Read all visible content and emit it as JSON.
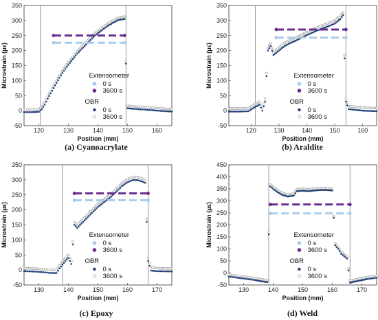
{
  "colors": {
    "extensometer_0s": "#a9cbea",
    "extensometer_3600s": "#6a2c91",
    "obr_0s": "#1f3f78",
    "obr_3600s_fill": "#ffffff",
    "obr_3600s_edge": "#999999",
    "divider": "#9a9a9a"
  },
  "legend": {
    "extensometer_title": "Extensometer",
    "obr_title": "OBR",
    "label_0s": "0 s",
    "label_3600s": "3600 s"
  },
  "chart_data": [
    {
      "type": "scatter",
      "caption": "(a) Cyanoacrylate",
      "xlabel": "Position (mm)",
      "ylabel": "Microstrain (με)",
      "xlim": [
        115,
        165
      ],
      "ylim": [
        -50,
        350
      ],
      "xticks": [
        120,
        130,
        140,
        150,
        160
      ],
      "yticks": [
        -50,
        0,
        50,
        100,
        150,
        200,
        250,
        300,
        350
      ],
      "dividers": [
        120.5,
        149.5
      ],
      "extensometer": [
        {
          "name": "0 s",
          "x_range": [
            125,
            149
          ],
          "value": 226
        },
        {
          "name": "3600 s",
          "x_range": [
            125,
            149
          ],
          "value": 250
        }
      ],
      "obr_profile": [
        [
          115,
          -5
        ],
        [
          118,
          -5
        ],
        [
          120,
          -4
        ],
        [
          121,
          5
        ],
        [
          122,
          20
        ],
        [
          123,
          40
        ],
        [
          125,
          75
        ],
        [
          127,
          110
        ],
        [
          129,
          140
        ],
        [
          131,
          165
        ],
        [
          133,
          190
        ],
        [
          135,
          210
        ],
        [
          137,
          230
        ],
        [
          139,
          250
        ],
        [
          141,
          265
        ],
        [
          143,
          280
        ],
        [
          145,
          292
        ],
        [
          147,
          302
        ],
        [
          149,
          305
        ],
        [
          150,
          8
        ],
        [
          152,
          6
        ],
        [
          155,
          4
        ],
        [
          158,
          2
        ],
        [
          160,
          0
        ],
        [
          163,
          -2
        ],
        [
          165,
          -3
        ]
      ],
      "obr_3600_offset": 8,
      "legend_position": "bottom-right"
    },
    {
      "type": "scatter",
      "caption": "(b) Araldite",
      "xlabel": "Position (mm)",
      "ylabel": "Microstrain (με)",
      "xlim": [
        112,
        165
      ],
      "ylim": [
        -50,
        350
      ],
      "xticks": [
        120,
        130,
        140,
        150,
        160
      ],
      "yticks": [
        -50,
        0,
        50,
        100,
        150,
        200,
        250,
        300,
        350
      ],
      "dividers": [
        121.5,
        154
      ],
      "extensometer": [
        {
          "name": "0 s",
          "x_range": [
            129,
            154
          ],
          "value": 243
        },
        {
          "name": "3600 s",
          "x_range": [
            129,
            154
          ],
          "value": 270
        }
      ],
      "obr_profile": [
        [
          112,
          -3
        ],
        [
          116,
          -3
        ],
        [
          119,
          -2
        ],
        [
          121,
          10
        ],
        [
          123,
          20
        ],
        [
          124,
          0
        ],
        [
          125,
          30
        ],
        [
          126,
          200
        ],
        [
          127,
          215
        ],
        [
          128,
          185
        ],
        [
          130,
          200
        ],
        [
          132,
          215
        ],
        [
          134,
          225
        ],
        [
          136,
          233
        ],
        [
          138,
          242
        ],
        [
          140,
          252
        ],
        [
          142,
          260
        ],
        [
          144,
          268
        ],
        [
          146,
          275
        ],
        [
          148,
          282
        ],
        [
          150,
          290
        ],
        [
          152,
          305
        ],
        [
          153,
          318
        ],
        [
          154,
          30
        ],
        [
          155,
          5
        ],
        [
          158,
          2
        ],
        [
          160,
          0
        ],
        [
          165,
          -2
        ]
      ],
      "obr_3600_offset": 10,
      "legend_position": "bottom-right"
    },
    {
      "type": "scatter",
      "caption": "(c) Epoxy",
      "xlabel": "Position (mm)",
      "ylabel": "Microstrain (με)",
      "xlim": [
        125,
        175
      ],
      "ylim": [
        -50,
        350
      ],
      "xticks": [
        130,
        140,
        150,
        160,
        170
      ],
      "yticks": [
        -50,
        0,
        50,
        100,
        150,
        200,
        250,
        300,
        350
      ],
      "dividers": [
        138,
        167
      ],
      "extensometer": [
        {
          "name": "0 s",
          "x_range": [
            142,
            167
          ],
          "value": 232
        },
        {
          "name": "3600 s",
          "x_range": [
            142,
            167
          ],
          "value": 255
        }
      ],
      "obr_profile": [
        [
          125,
          -4
        ],
        [
          128,
          -5
        ],
        [
          131,
          -7
        ],
        [
          134,
          -10
        ],
        [
          136,
          -10
        ],
        [
          137,
          5
        ],
        [
          139,
          30
        ],
        [
          140,
          40
        ],
        [
          141,
          20
        ],
        [
          142,
          150
        ],
        [
          143,
          140
        ],
        [
          144,
          150
        ],
        [
          146,
          170
        ],
        [
          148,
          190
        ],
        [
          150,
          210
        ],
        [
          152,
          225
        ],
        [
          154,
          240
        ],
        [
          156,
          258
        ],
        [
          158,
          278
        ],
        [
          160,
          292
        ],
        [
          162,
          300
        ],
        [
          164,
          298
        ],
        [
          166,
          290
        ],
        [
          167,
          30
        ],
        [
          168,
          -2
        ],
        [
          170,
          -4
        ],
        [
          175,
          -5
        ]
      ],
      "obr_3600_offset": 10,
      "legend_position": "bottom-right"
    },
    {
      "type": "scatter",
      "caption": "(d) Weld",
      "xlabel": "Position (mm)",
      "ylabel": "Microstrain (με)",
      "xlim": [
        125,
        175
      ],
      "ylim": [
        -50,
        450
      ],
      "xticks": [
        130,
        140,
        150,
        160,
        170
      ],
      "yticks": [
        -50,
        0,
        50,
        100,
        150,
        200,
        250,
        300,
        350,
        400,
        450
      ],
      "dividers": [
        138.5,
        166
      ],
      "extensometer": [
        {
          "name": "0 s",
          "x_range": [
            139,
            166
          ],
          "value": 248
        },
        {
          "name": "3600 s",
          "x_range": [
            139,
            166
          ],
          "value": 285
        }
      ],
      "obr_profile": [
        [
          125,
          -15
        ],
        [
          128,
          -20
        ],
        [
          131,
          -25
        ],
        [
          134,
          -30
        ],
        [
          136,
          -35
        ],
        [
          138,
          -38
        ],
        [
          139,
          360
        ],
        [
          140,
          350
        ],
        [
          141,
          340
        ],
        [
          143,
          325
        ],
        [
          145,
          318
        ],
        [
          147,
          322
        ],
        [
          148,
          340
        ],
        [
          150,
          342
        ],
        [
          152,
          340
        ],
        [
          154,
          343
        ],
        [
          156,
          345
        ],
        [
          158,
          345
        ],
        [
          160,
          343
        ],
        [
          161,
          115
        ],
        [
          162,
          100
        ],
        [
          163,
          80
        ],
        [
          165,
          60
        ],
        [
          166,
          -40
        ],
        [
          168,
          -35
        ],
        [
          170,
          -30
        ],
        [
          172,
          -25
        ],
        [
          175,
          -20
        ]
      ],
      "obr_3600_offset": 8,
      "legend_position": "bottom-right"
    }
  ]
}
